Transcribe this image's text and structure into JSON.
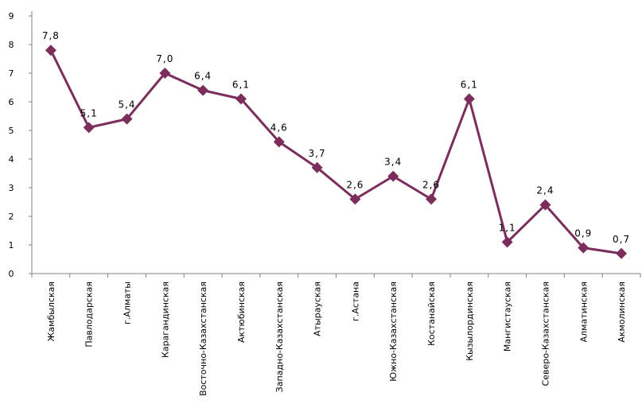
{
  "chart_data": {
    "type": "line",
    "title": "",
    "xlabel": "",
    "ylabel": "",
    "ylim": [
      0,
      9
    ],
    "y_ticks": [
      "0",
      "1",
      "2",
      "3",
      "4",
      "5",
      "6",
      "7",
      "8",
      "9"
    ],
    "grid": false,
    "legend": "none",
    "categories": [
      "Жамбылская",
      "Павлодарская",
      "г.Алматы",
      "Карагандинская",
      "Восточно-Казахстанская",
      "Актюбинская",
      "Западно-Казахстанская",
      "Атырауская",
      "г.Астана",
      "Южно-Казахстанская",
      "Костанайская",
      "Кызылординская",
      "Мангистауская",
      "Северо-Казахстанская",
      "Алматинская",
      "Акмолинская"
    ],
    "values": [
      7.8,
      5.1,
      5.4,
      7.0,
      6.4,
      6.1,
      4.6,
      3.7,
      2.6,
      3.4,
      2.6,
      6.1,
      1.1,
      2.4,
      0.9,
      0.7
    ],
    "data_labels": [
      "7,8",
      "5,1",
      "5,4",
      "7,0",
      "6,4",
      "6,1",
      "4,6",
      "3,7",
      "2,6",
      "3,4",
      "2,6",
      "6,1",
      "1,1",
      "2,4",
      "0,9",
      "0,7"
    ],
    "series_color": "#7B2D5B",
    "axis_color": "#808080"
  }
}
